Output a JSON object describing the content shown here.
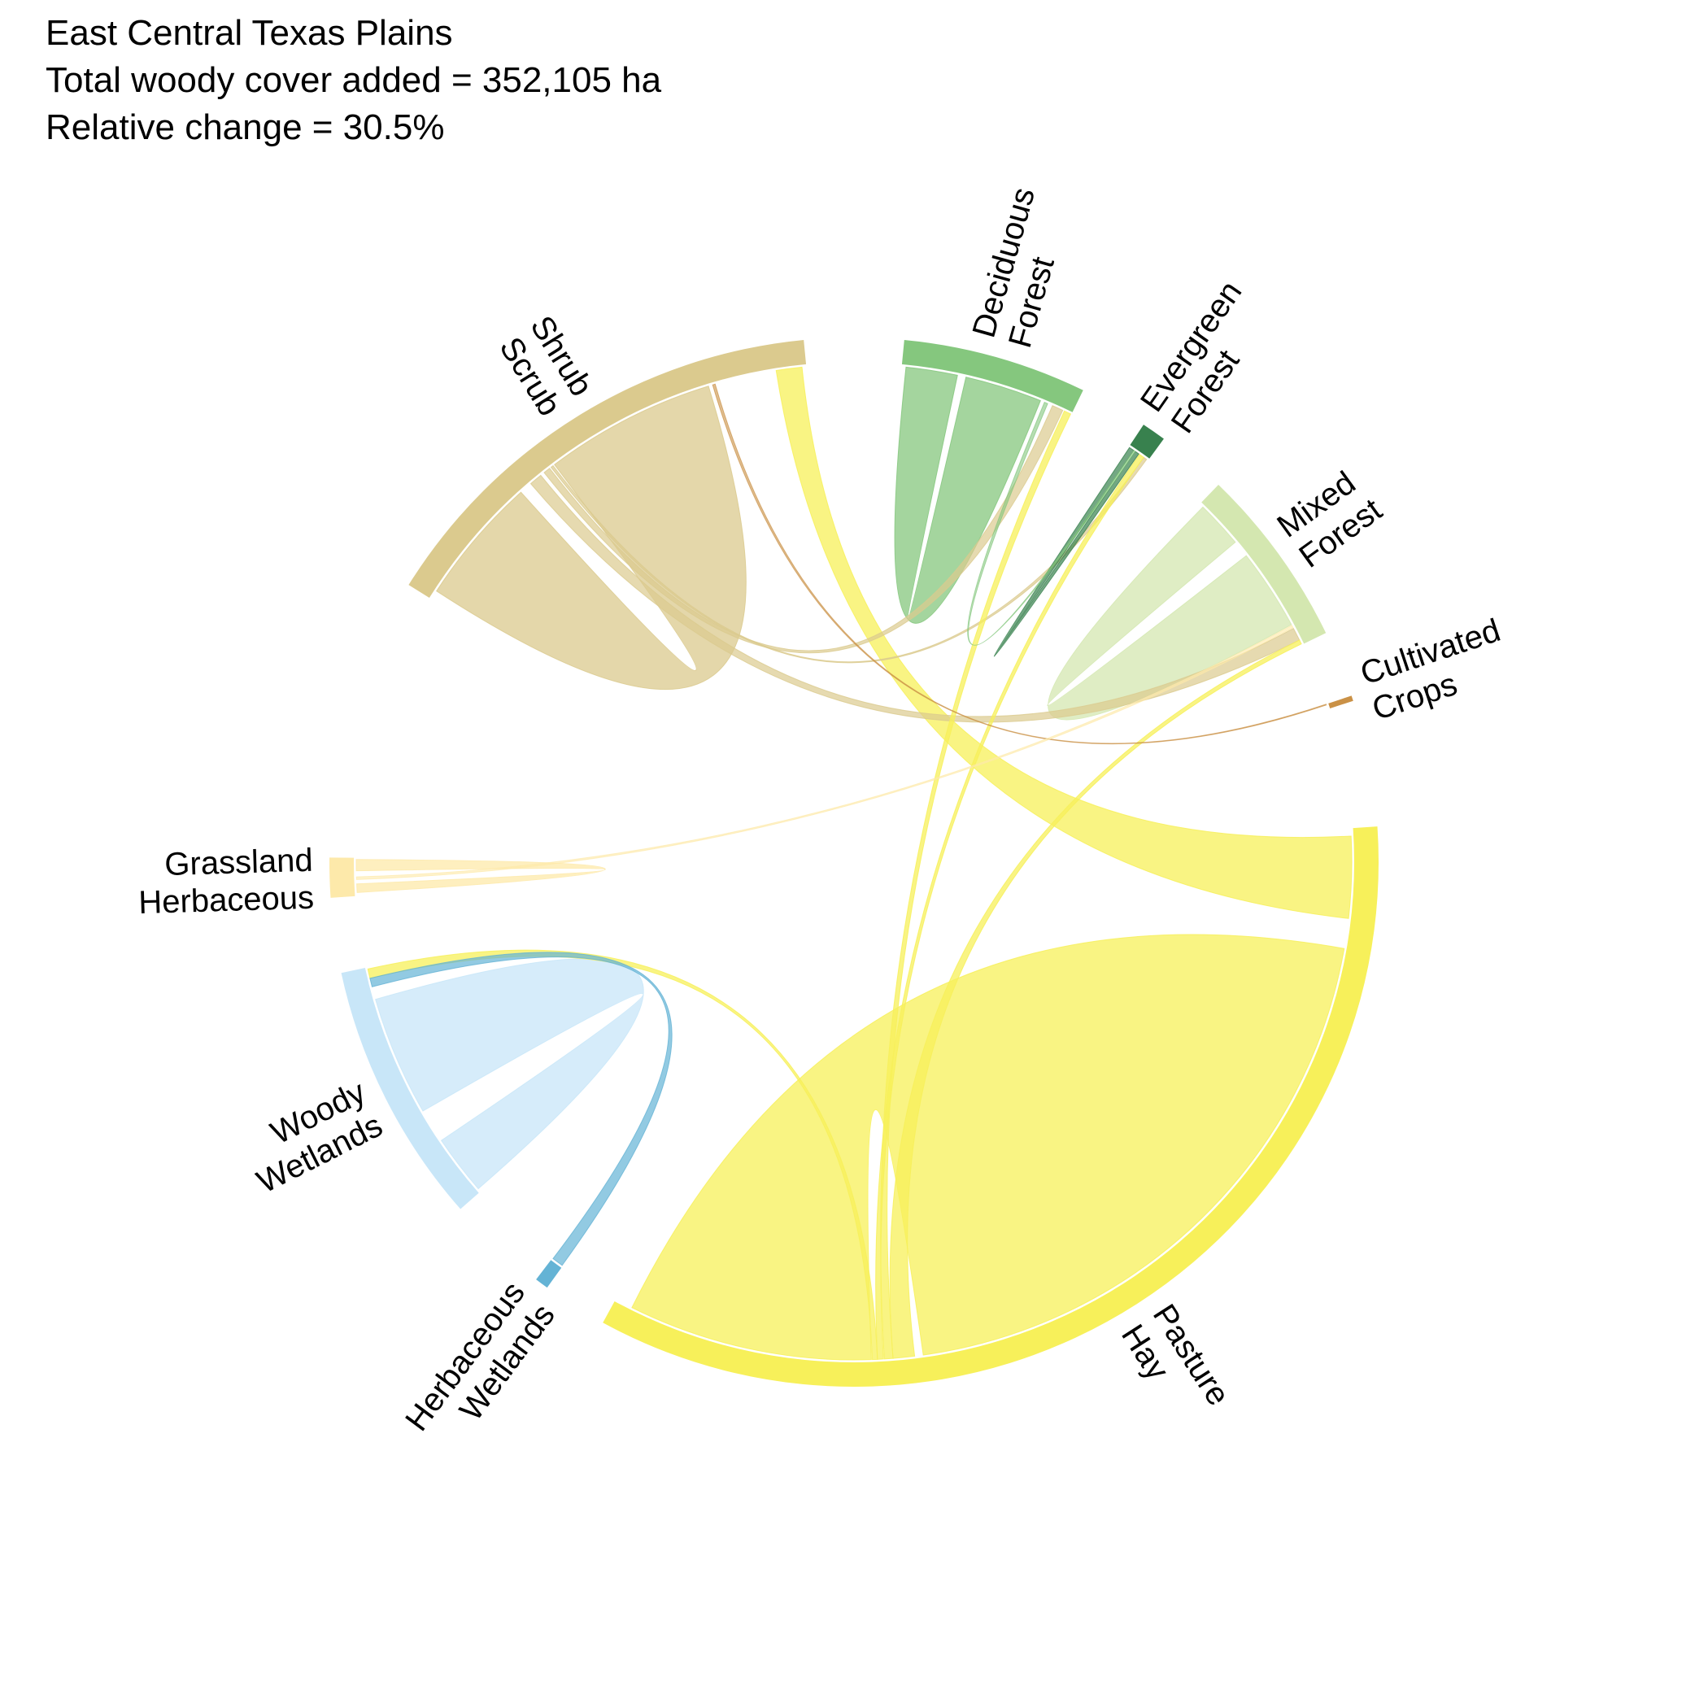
{
  "title_lines": [
    "East Central Texas Plains",
    "Total woody cover added = 352,105 ha",
    "Relative change = 30.5%"
  ],
  "chart_data": {
    "type": "chord",
    "title": "East Central Texas Plains",
    "total_woody_cover_added": "352,105 ha",
    "relative_change": "30.5%",
    "sectors": [
      {
        "name": "Shrub Scrub",
        "label_lines": [
          "Shrub",
          "Scrub"
        ],
        "color": "#DBCA8E",
        "start": 301.9,
        "end": 354.5
      },
      {
        "name": "Deciduous Forest",
        "label_lines": [
          "Deciduous",
          "Forest"
        ],
        "color": "#85C77E",
        "start": 5.5,
        "end": 25.9
      },
      {
        "name": "Evergreen Forest",
        "label_lines": [
          "Evergreen",
          "Forest"
        ],
        "color": "#38814E",
        "start": 33.5,
        "end": 36.2
      },
      {
        "name": "Mixed Forest",
        "label_lines": [
          "Mixed",
          "Forest"
        ],
        "color": "#D4E7B0",
        "start": 44.0,
        "end": 64.1
      },
      {
        "name": "Cultivated Crops",
        "label_lines": [
          "Cultivated",
          "Crops"
        ],
        "color": "#CA9146",
        "start": 71.5,
        "end": 71.8
      },
      {
        "name": "Pasture Hay",
        "label_lines": [
          "Pasture",
          "Hay"
        ],
        "color": "#F7F05A",
        "start": 86.1,
        "end": 208.6
      },
      {
        "name": "Herbaceous Wetlands",
        "label_lines": [
          "Herbaceous",
          "Wetlands"
        ],
        "color": "#64B3D5",
        "start": 215.8,
        "end": 217.3
      },
      {
        "name": "Woody Wetlands",
        "label_lines": [
          "Woody",
          "Wetlands"
        ],
        "color": "#C8E6F8",
        "start": 228.6,
        "end": 257.8
      },
      {
        "name": "Grassland Herbaceous",
        "label_lines": [
          "Grassland",
          "Herbaceous"
        ],
        "color": "#FDE9AA",
        "start": 266.1,
        "end": 270.5
      }
    ],
    "links": [
      {
        "from": "Pasture Hay",
        "to": "Pasture Hay",
        "s1": 100.0,
        "s2": 172.0,
        "t1": 178.0,
        "t2": 206.5,
        "color": "#F7F05A",
        "opacity": 0.75
      },
      {
        "from": "Pasture Hay",
        "to": "Shrub Scrub",
        "s1": 87.0,
        "s2": 96.5,
        "t1": 351.0,
        "t2": 354.0,
        "color": "#F7F05A",
        "opacity": 0.75
      },
      {
        "from": "Shrub Scrub",
        "to": "Shrub Scrub",
        "s1": 303.0,
        "s2": 318.0,
        "t1": 323.0,
        "t2": 343.0,
        "color": "#DBCA8E",
        "opacity": 0.75
      },
      {
        "from": "Deciduous Forest",
        "to": "Deciduous Forest",
        "s1": 6.0,
        "s2": 12.0,
        "t1": 13.0,
        "t2": 22.0,
        "color": "#85C77E",
        "opacity": 0.75
      },
      {
        "from": "Mixed Forest",
        "to": "Mixed Forest",
        "s1": 44.5,
        "s2": 50.0,
        "t1": 52.0,
        "t2": 61.5,
        "color": "#D4E7B0",
        "opacity": 0.75
      },
      {
        "from": "Woody Wetlands",
        "to": "Woody Wetlands",
        "s1": 229.0,
        "s2": 236.0,
        "t1": 240.0,
        "t2": 254.0,
        "color": "#C8E6F8",
        "opacity": 0.75
      },
      {
        "from": "Grassland Herbaceous",
        "to": "Grassland Herbaceous",
        "s1": 266.5,
        "s2": 267.5,
        "t1": 269.0,
        "t2": 270.3,
        "color": "#FDE9AA",
        "opacity": 0.75
      },
      {
        "from": "Shrub Scrub",
        "to": "Mixed Forest",
        "s1": 319.5,
        "s2": 321.0,
        "t1": 62.0,
        "t2": 63.5,
        "color": "#DBCA8E",
        "opacity": 0.7
      },
      {
        "from": "Shrub Scrub",
        "to": "Deciduous Forest",
        "s1": 321.5,
        "s2": 322.3,
        "t1": 23.5,
        "t2": 24.8,
        "color": "#DBCA8E",
        "opacity": 0.7
      },
      {
        "from": "Shrub Scrub",
        "to": "Evergreen Forest",
        "s1": 322.5,
        "s2": 322.8,
        "t1": 35.6,
        "t2": 36.0,
        "color": "#DBCA8E",
        "opacity": 0.7
      },
      {
        "from": "Pasture Hay",
        "to": "Mixed Forest",
        "s1": 173.0,
        "s2": 175.5,
        "t1": 63.5,
        "t2": 64.0,
        "color": "#F7F05A",
        "opacity": 0.75
      },
      {
        "from": "Pasture Hay",
        "to": "Deciduous Forest",
        "s1": 175.5,
        "s2": 176.5,
        "t1": 25.0,
        "t2": 25.8,
        "color": "#F7F05A",
        "opacity": 0.75
      },
      {
        "from": "Pasture Hay",
        "to": "Evergreen Forest",
        "s1": 176.6,
        "s2": 177.3,
        "t1": 35.0,
        "t2": 35.6,
        "color": "#F7F05A",
        "opacity": 0.75
      },
      {
        "from": "Pasture Hay",
        "to": "Woody Wetlands",
        "s1": 177.3,
        "s2": 177.9,
        "t1": 256.5,
        "t2": 257.6,
        "color": "#F7F05A",
        "opacity": 0.75
      },
      {
        "from": "Woody Wetlands",
        "to": "Herbaceous Wetlands",
        "s1": 255.5,
        "s2": 256.5,
        "t1": 215.9,
        "t2": 217.2,
        "color": "#64B3D5",
        "opacity": 0.7
      },
      {
        "from": "Evergreen Forest",
        "to": "Evergreen Forest",
        "s1": 33.6,
        "s2": 34.2,
        "t1": 34.4,
        "t2": 34.9,
        "color": "#38814E",
        "opacity": 0.7
      },
      {
        "from": "Deciduous Forest",
        "to": "Evergreen Forest",
        "s1": 22.5,
        "s2": 22.9,
        "t1": 34.2,
        "t2": 34.4,
        "color": "#85C77E",
        "opacity": 0.6
      },
      {
        "from": "Cultivated Crops",
        "to": "Shrub Scrub",
        "s1": 71.5,
        "s2": 71.6,
        "t1": 343.5,
        "t2": 343.8,
        "color": "#CA9146",
        "opacity": 0.6
      },
      {
        "from": "Grassland Herbaceous",
        "to": "Mixed Forest",
        "s1": 268.0,
        "s2": 268.3,
        "t1": 61.6,
        "t2": 61.9,
        "color": "#FDE9AA",
        "opacity": 0.6
      }
    ]
  }
}
